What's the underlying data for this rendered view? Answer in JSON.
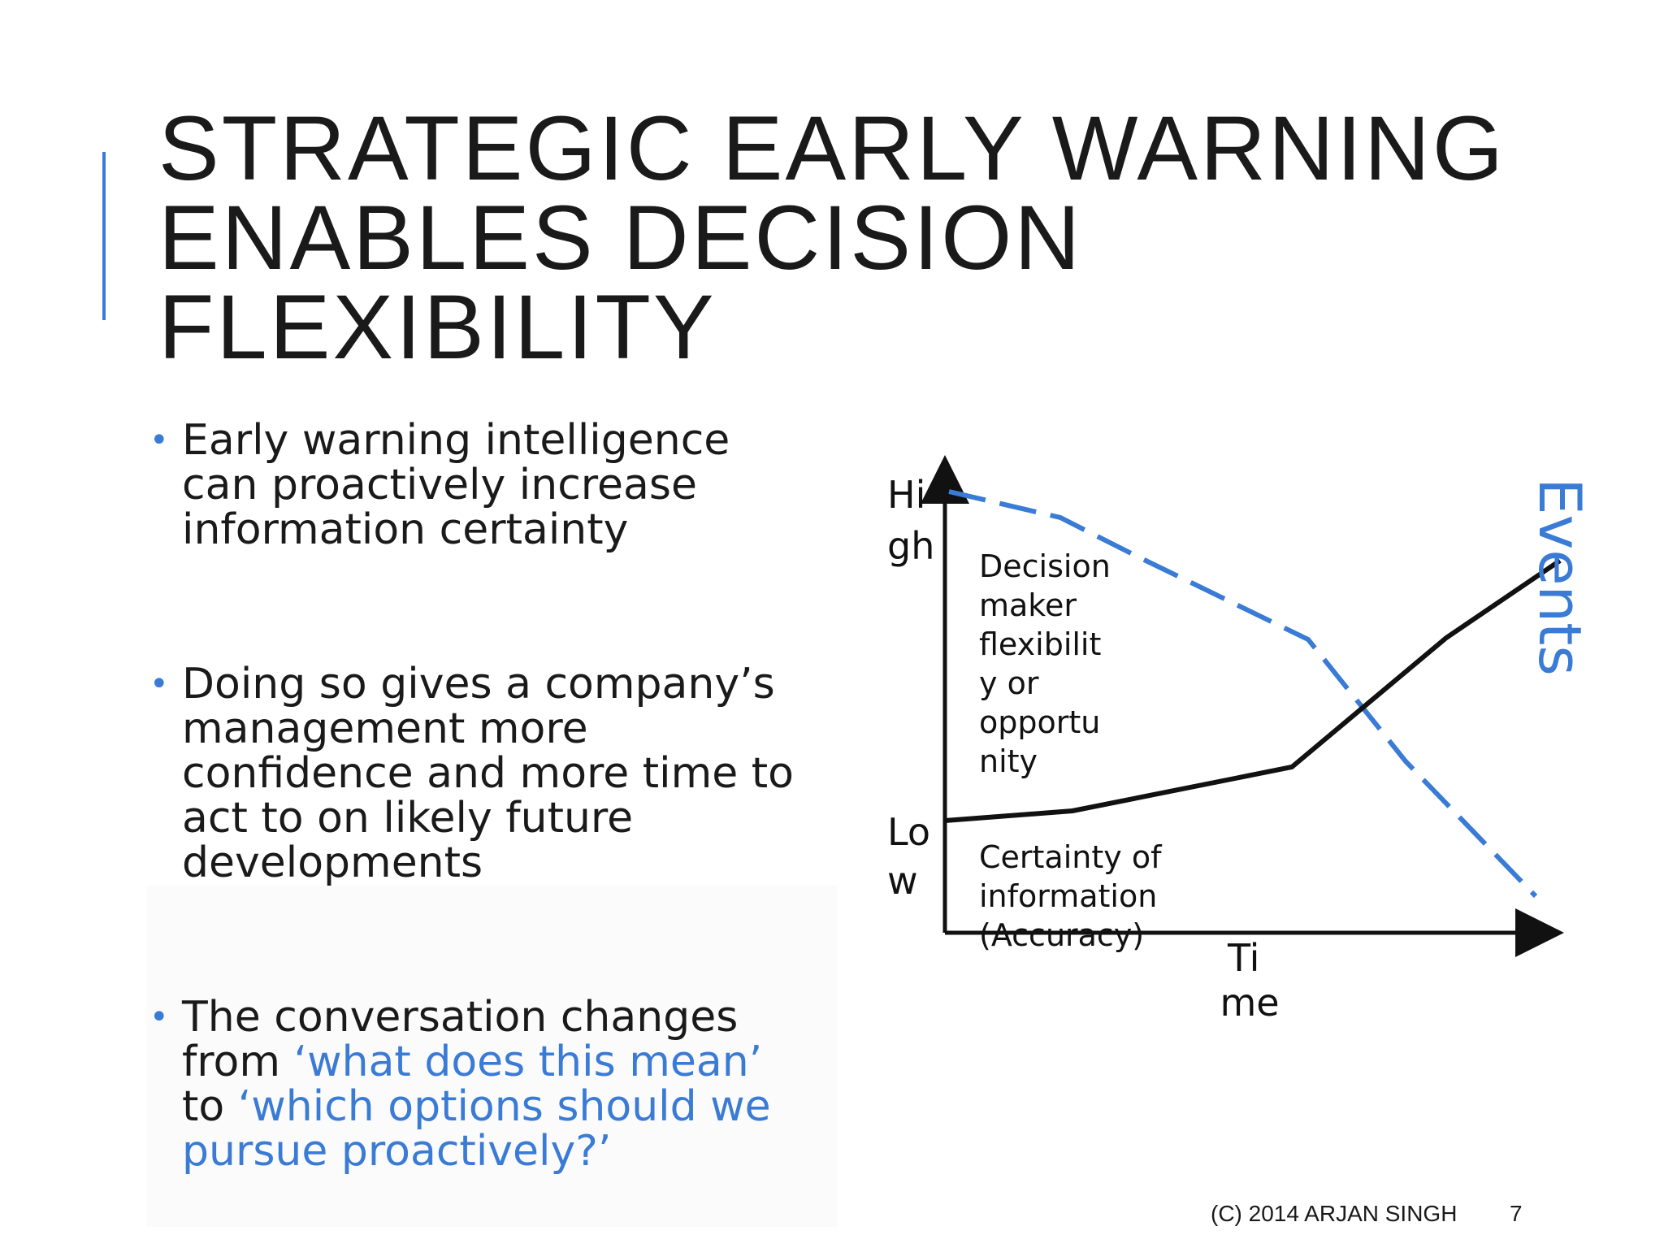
{
  "slide": {
    "title_lines": [
      "STRATEGIC EARLY WARNING",
      "ENABLES DECISION",
      "FLEXIBILITY"
    ],
    "bullets": [
      {
        "lines": [
          "Early warning intelligence",
          "can proactively increase",
          "information certainty"
        ]
      },
      {
        "lines": [
          "Doing so gives a company’s",
          "management more",
          "confidence and more time to",
          "act to on likely future",
          "developments"
        ]
      },
      {
        "line1": "The conversation changes",
        "line2_prefix": "from ",
        "line2_quote": "‘what does this mean’",
        "line3_prefix": "to ",
        "line3_quote": "‘which options should we",
        "line4_quote": "pursue proactively?’"
      }
    ],
    "footer": {
      "copyright": "(C) 2014 ARJAN SINGH",
      "page_number": "7"
    }
  },
  "diagram": {
    "y_axis_high": [
      "Hi",
      "gh"
    ],
    "y_axis_low": [
      "Lo",
      "w"
    ],
    "x_axis_label": [
      "Ti",
      "me"
    ],
    "flexibility_label": [
      "Decision",
      "maker",
      "flexibilit",
      "y or",
      "opportu",
      "nity"
    ],
    "certainty_label": [
      "Certainty of",
      "information",
      "(Accuracy)"
    ],
    "events_label": "Events",
    "colors": {
      "dashed_line": "#3a7bd5",
      "solid_line": "#111111",
      "accent": "#3a7bd5"
    }
  }
}
